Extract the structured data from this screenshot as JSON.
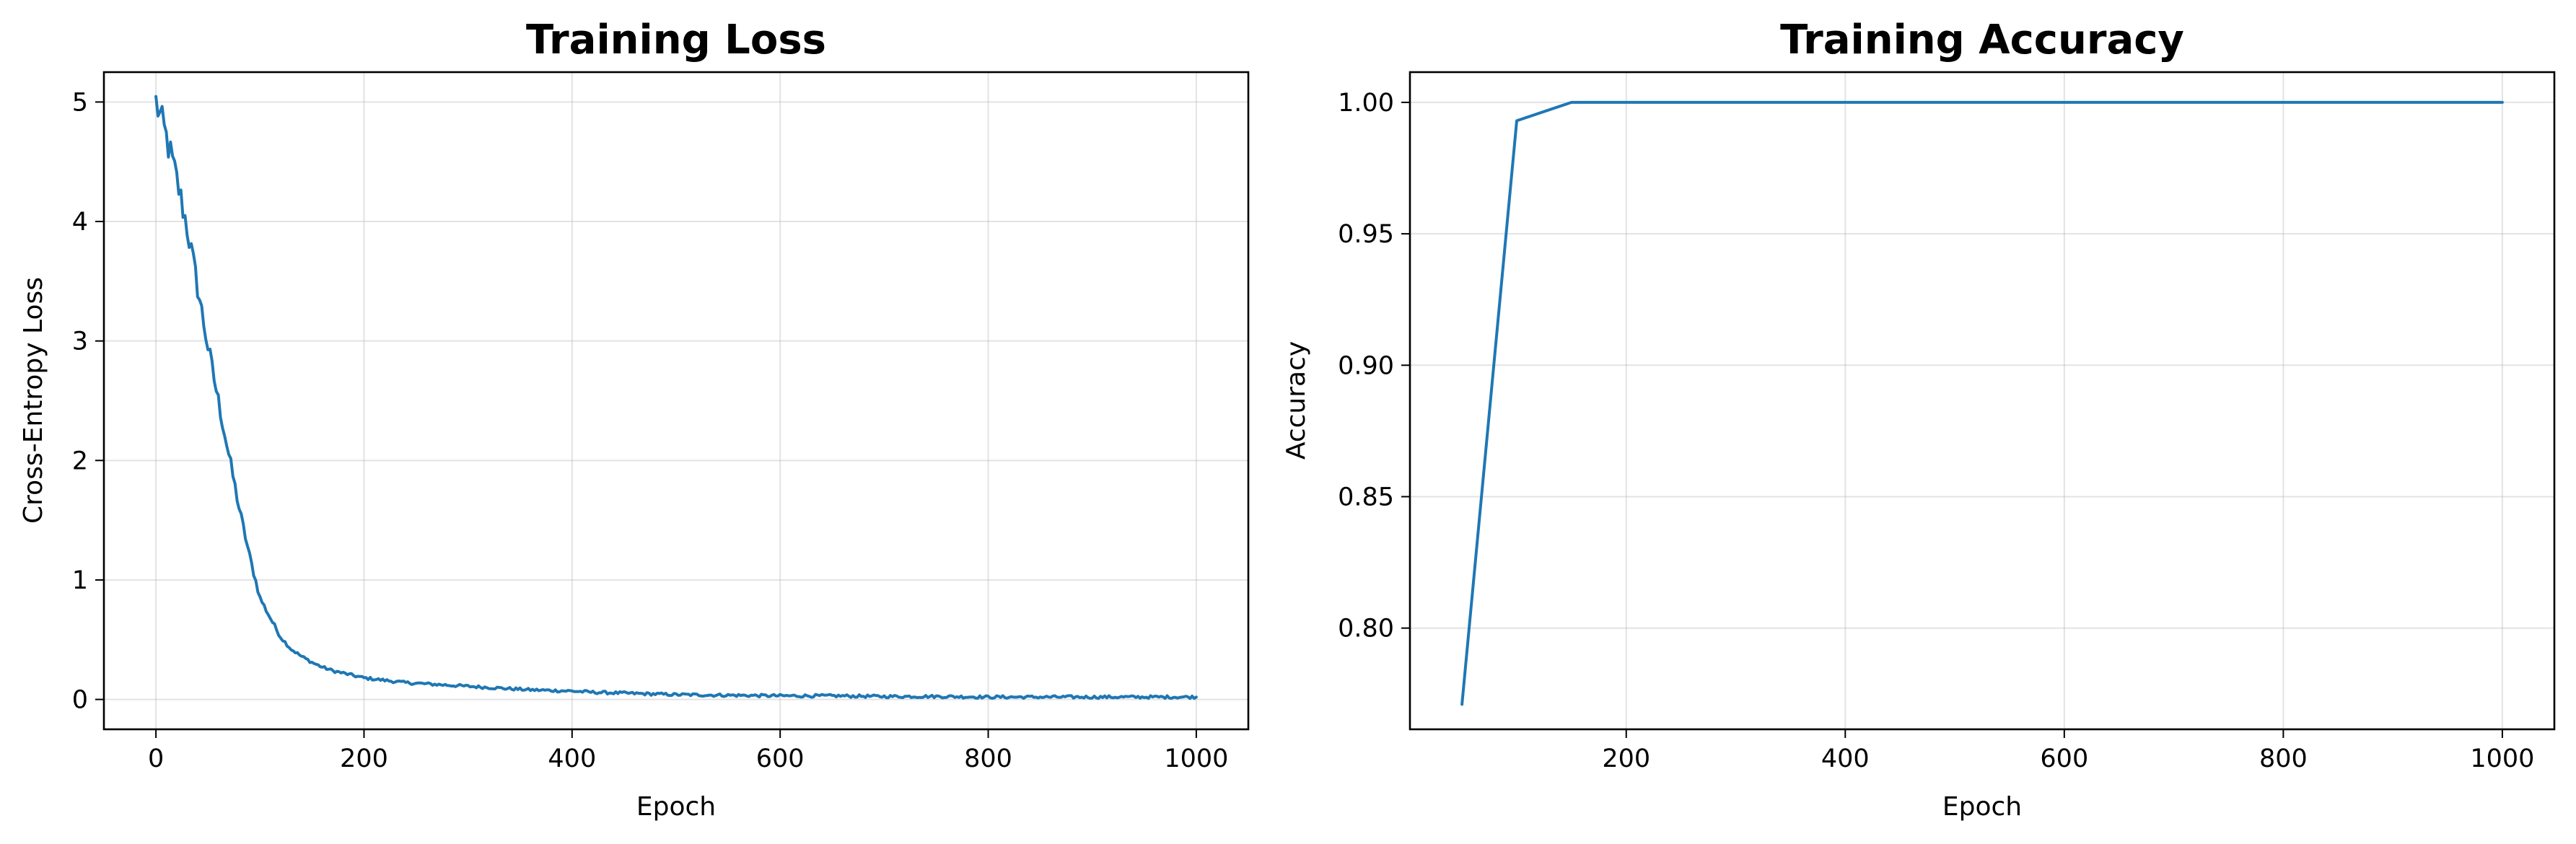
{
  "chart_data": [
    {
      "type": "line",
      "title": "Training Loss",
      "xlabel": "Epoch",
      "ylabel": "Cross-Entropy Loss",
      "xlim": [
        -50,
        1050
      ],
      "ylim": [
        -0.25,
        5.25
      ],
      "xticks": [
        0,
        200,
        400,
        600,
        800,
        1000
      ],
      "xtick_labels": [
        "0",
        "200",
        "400",
        "600",
        "800",
        "1000"
      ],
      "yticks": [
        0,
        1,
        2,
        3,
        4,
        5
      ],
      "ytick_labels": [
        "0",
        "1",
        "2",
        "3",
        "4",
        "5"
      ],
      "grid": true,
      "color": "#1f77b4",
      "series": [
        {
          "x": [
            0,
            10,
            20,
            30,
            40,
            50,
            60,
            70,
            80,
            90,
            100,
            110,
            120,
            130,
            140,
            150,
            160,
            170,
            180,
            190,
            200,
            220,
            240,
            260,
            280,
            300,
            320,
            340,
            360,
            380,
            400,
            420,
            440,
            460,
            480,
            500,
            550,
            600,
            650,
            700,
            750,
            800,
            850,
            900,
            950,
            1000
          ],
          "values": [
            5.0,
            4.7,
            4.35,
            3.95,
            3.45,
            2.95,
            2.5,
            2.05,
            1.6,
            1.2,
            0.85,
            0.68,
            0.52,
            0.42,
            0.36,
            0.31,
            0.27,
            0.24,
            0.22,
            0.2,
            0.18,
            0.16,
            0.14,
            0.13,
            0.12,
            0.11,
            0.1,
            0.09,
            0.08,
            0.075,
            0.07,
            0.06,
            0.055,
            0.05,
            0.045,
            0.04,
            0.035,
            0.03,
            0.03,
            0.025,
            0.025,
            0.02,
            0.02,
            0.02,
            0.02,
            0.02
          ]
        }
      ]
    },
    {
      "type": "line",
      "title": "Training Accuracy",
      "xlabel": "Epoch",
      "ylabel": "Accuracy",
      "xlim": [
        2.5,
        1047.5
      ],
      "ylim": [
        0.7615,
        1.0115
      ],
      "xticks": [
        200,
        400,
        600,
        800,
        1000
      ],
      "xtick_labels": [
        "200",
        "400",
        "600",
        "800",
        "1000"
      ],
      "yticks": [
        0.8,
        0.85,
        0.9,
        0.95,
        1.0
      ],
      "ytick_labels": [
        "0.80",
        "0.85",
        "0.90",
        "0.95",
        "1.00"
      ],
      "grid": true,
      "color": "#1f77b4",
      "series": [
        {
          "x": [
            50,
            100,
            150,
            200,
            250,
            300,
            350,
            400,
            450,
            500,
            550,
            600,
            650,
            700,
            750,
            800,
            850,
            900,
            950,
            1000
          ],
          "values": [
            0.771,
            0.993,
            1.0,
            1.0,
            1.0,
            1.0,
            1.0,
            1.0,
            1.0,
            1.0,
            1.0,
            1.0,
            1.0,
            1.0,
            1.0,
            1.0,
            1.0,
            1.0,
            1.0,
            1.0
          ]
        }
      ]
    }
  ]
}
